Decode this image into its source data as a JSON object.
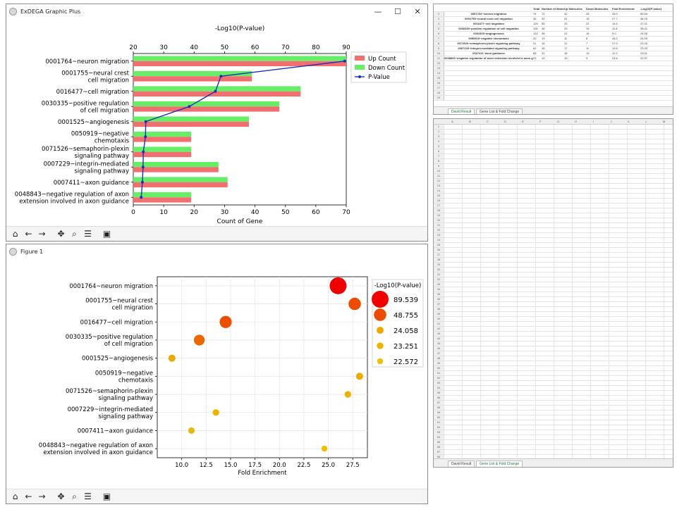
{
  "top_window": {
    "title": "ExDEGA Graphic Plus",
    "controls": [
      "—",
      "☐",
      "✕"
    ],
    "chart_data": {
      "type": "bar",
      "title": "-Log10(P-value)",
      "xlabel": "Count of Gene",
      "top_ticks": [
        "20",
        "30",
        "40",
        "50",
        "60",
        "70",
        "80",
        "90"
      ],
      "bottom_ticks": [
        "0",
        "10",
        "20",
        "30",
        "40",
        "50",
        "60",
        "70"
      ],
      "xlim_count": [
        0,
        70
      ],
      "xlim_pvalue": [
        20,
        90
      ],
      "categories": [
        "0001764~neuron migration",
        "0001755~neural crest cell migration",
        "0016477~cell migration",
        "0030335~positive regulation of cell migration",
        "0001525~angiogenesis",
        "0050919~negative chemotaxis",
        "0071526~semaphorin-plexin signaling pathway",
        "0007229~integrin-mediated signaling pathway",
        "0007411~axon guidance",
        "0048843~negative regulation of axon extension involved in axon guidance"
      ],
      "category_lines": [
        [
          "0001764~neuron migration"
        ],
        [
          "0001755~neural crest",
          "cell migration"
        ],
        [
          "0016477~cell migration"
        ],
        [
          "0030335~positive regulation",
          "of cell migration"
        ],
        [
          "0001525~angiogenesis"
        ],
        [
          "0050919~negative",
          "chemotaxis"
        ],
        [
          "0071526~semaphorin-plexin",
          "signaling pathway"
        ],
        [
          "0007229~integrin-mediated",
          "signaling pathway"
        ],
        [
          "0007411~axon guidance"
        ],
        [
          "0048843~negative regulation of axon",
          "extension involved in axon guidance"
        ]
      ],
      "series": [
        {
          "name": "Up Count",
          "values": [
            70,
            39,
            55,
            48,
            38,
            19,
            19,
            28,
            31,
            19
          ]
        },
        {
          "name": "Down Count",
          "values": [
            70,
            39,
            55,
            48,
            38,
            19,
            19,
            28,
            31,
            19
          ]
        },
        {
          "name": "P-Value",
          "values": [
            89.5,
            48.8,
            47.0,
            38.4,
            24.1,
            24.0,
            23.3,
            23.2,
            23.0,
            22.6
          ]
        }
      ],
      "colors": {
        "up": "#f26f6f",
        "down": "#66ee66",
        "pvalue": "#1f2fb8"
      },
      "legend_placement": "top-right"
    }
  },
  "bottom_window": {
    "title": "Figure 1",
    "chart_data": {
      "type": "scatter",
      "xlabel": "Fold Enrichment",
      "x_ticks": [
        "10.0",
        "12.5",
        "15.0",
        "17.5",
        "20.0",
        "22.5",
        "25.0",
        "27.5"
      ],
      "xlim": [
        7.5,
        29.0
      ],
      "categories": [
        "0001764~neuron migration",
        "0001755~neural crest cell migration",
        "0016477~cell migration",
        "0030335~positive regulation of cell migration",
        "0001525~angiogenesis",
        "0050919~negative chemotaxis",
        "0071526~semaphorin-plexin signaling pathway",
        "0007229~integrin-mediated signaling pathway",
        "0007411~axon guidance",
        "0048843~negative regulation of axon extension involved in axon guidance"
      ],
      "category_lines": [
        [
          "0001764~neuron migration"
        ],
        [
          "0001755~neural crest",
          "cell migration"
        ],
        [
          "0016477~cell migration"
        ],
        [
          "0030335~positive regulation",
          "of cell migration"
        ],
        [
          "0001525~angiogenesis"
        ],
        [
          "0050919~negative",
          "chemotaxis"
        ],
        [
          "0071526~semaphorin-plexin",
          "signaling pathway"
        ],
        [
          "0007229~integrin-mediated",
          "signaling pathway"
        ],
        [
          "0007411~axon guidance"
        ],
        [
          "0048843~negative regulation of axon",
          "extension involved in axon guidance"
        ]
      ],
      "points": [
        {
          "x": 26.0,
          "p": 89.5
        },
        {
          "x": 27.7,
          "p": 48.8
        },
        {
          "x": 14.5,
          "p": 47.0
        },
        {
          "x": 11.8,
          "p": 38.4
        },
        {
          "x": 9.0,
          "p": 24.1
        },
        {
          "x": 28.2,
          "p": 24.0
        },
        {
          "x": 27.0,
          "p": 23.3
        },
        {
          "x": 13.5,
          "p": 23.2
        },
        {
          "x": 11.0,
          "p": 23.0
        },
        {
          "x": 24.6,
          "p": 22.6
        }
      ],
      "legend_title": "-Log10(P-value)",
      "legend_values": [
        "89.539",
        "48.755",
        "24.058",
        "23.251",
        "22.572"
      ],
      "legend_placement": "right"
    }
  },
  "toolbar_icons": [
    "home-icon",
    "back-icon",
    "forward-icon",
    "pan-icon",
    "zoom-icon",
    "configure-icon",
    "save-icon"
  ],
  "excel_top": {
    "headers": [
      "",
      "Total",
      "Number of Molecules",
      "Up Molecules",
      "Down Molecules",
      "Fold Enrichment",
      "-Log10(P-value)"
    ],
    "rows": [
      [
        "0001764~neuron migration",
        "74",
        "70",
        "42",
        "28",
        "26.0",
        "89.54"
      ],
      [
        "0001755~neural crest cell migration",
        "45",
        "39",
        "24",
        "15",
        "27.7",
        "48.76"
      ],
      [
        "0016477~cell migration",
        "125",
        "55",
        "33",
        "22",
        "14.5",
        "47.01"
      ],
      [
        "0030335~positive regulation of cell migration",
        "118",
        "48",
        "29",
        "19",
        "11.8",
        "38.41"
      ],
      [
        "0001525~angiogenesis",
        "122",
        "38",
        "22",
        "16",
        "9.0",
        "24.06"
      ],
      [
        "0050919~negative chemotaxis",
        "20",
        "19",
        "11",
        "8",
        "28.2",
        "24.00"
      ],
      [
        "0071526~semaphorin-plexin signaling pathway",
        "21",
        "19",
        "12",
        "7",
        "27.0",
        "23.25"
      ],
      [
        "0007229~integrin-mediated signaling pathway",
        "62",
        "28",
        "17",
        "11",
        "13.5",
        "23.20"
      ],
      [
        "0007411~axon guidance",
        "83",
        "31",
        "18",
        "13",
        "11.0",
        "23.01"
      ],
      [
        "0048843~negative regulation of axon extension involved in axon guidance",
        "23",
        "19",
        "10",
        "9",
        "24.6",
        "22.57"
      ]
    ],
    "tabs": [
      "David Result",
      "Gene List & Fold Change"
    ]
  },
  "excel_bottom": {
    "col_letters": [
      "A",
      "B",
      "C",
      "D",
      "E",
      "F",
      "G",
      "H",
      "I",
      "J",
      "K",
      "L",
      "M"
    ],
    "tabs": [
      "David Result",
      "Gene List & Fold Change"
    ]
  }
}
